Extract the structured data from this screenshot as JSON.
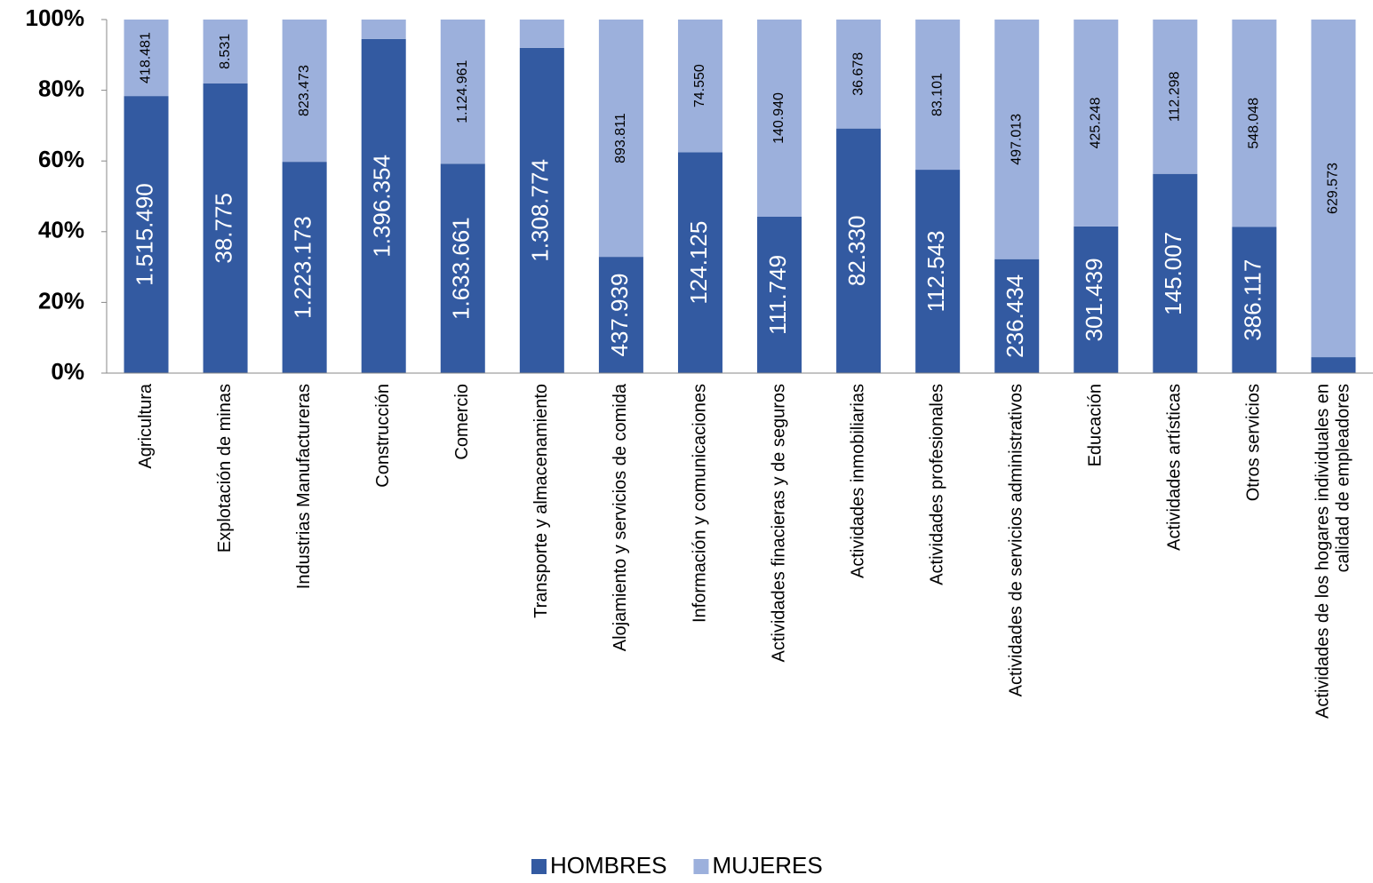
{
  "chart_data": {
    "type": "stacked_percent_bar",
    "categories": [
      "Agricultura",
      "Explotación de minas",
      "Industrias Manufactureras",
      "Construcción",
      "Comercio",
      "Transporte y almacenamiento",
      "Alojamiento y servicios de comida",
      "Información y comunicaciones",
      "Actividades finacieras y de seguros",
      "Actividades inmobiliarias",
      "Actividades profesionales",
      "Actividades de servicios administrativos",
      "Educación",
      "Actividades artísticas",
      "Otros servicios",
      "Actividades de los hogares individuales en calidad de empleadores"
    ],
    "series": [
      {
        "name": "HOMBRES",
        "color": "#335aa1",
        "values": [
          1515490,
          38775,
          1223173,
          1396354,
          1633661,
          1308774,
          437939,
          124125,
          111749,
          82330,
          112543,
          236434,
          301439,
          145007,
          386117,
          29700
        ],
        "value_labels": [
          "1.515.490",
          "38.775",
          "1.223.173",
          "1.396.354",
          "1.633.661",
          "1.308.774",
          "437.939",
          "124.125",
          "111.749",
          "82.330",
          "112.543",
          "236.434",
          "301.439",
          "145.007",
          "386.117",
          null
        ]
      },
      {
        "name": "MUJERES",
        "color": "#9cb0dc",
        "values": [
          418481,
          8531,
          823473,
          81000,
          1124961,
          113800,
          893811,
          74550,
          140940,
          36678,
          83101,
          497013,
          425248,
          112298,
          548048,
          629573
        ],
        "value_labels": [
          "418.481",
          "8.531",
          "823.473",
          null,
          "1.124.961",
          null,
          "893.811",
          "74.550",
          "140.940",
          "36.678",
          "83.101",
          "497.013",
          "425.248",
          "112.298",
          "548.048",
          "629.573"
        ]
      }
    ],
    "ylim": [
      0,
      100
    ],
    "yticks": [
      {
        "value": 0,
        "label": "0%"
      },
      {
        "value": 20,
        "label": "20%"
      },
      {
        "value": 40,
        "label": "40%"
      },
      {
        "value": 60,
        "label": "60%"
      },
      {
        "value": 80,
        "label": "80%"
      },
      {
        "value": 100,
        "label": "100%"
      }
    ],
    "legend": "bottom"
  }
}
